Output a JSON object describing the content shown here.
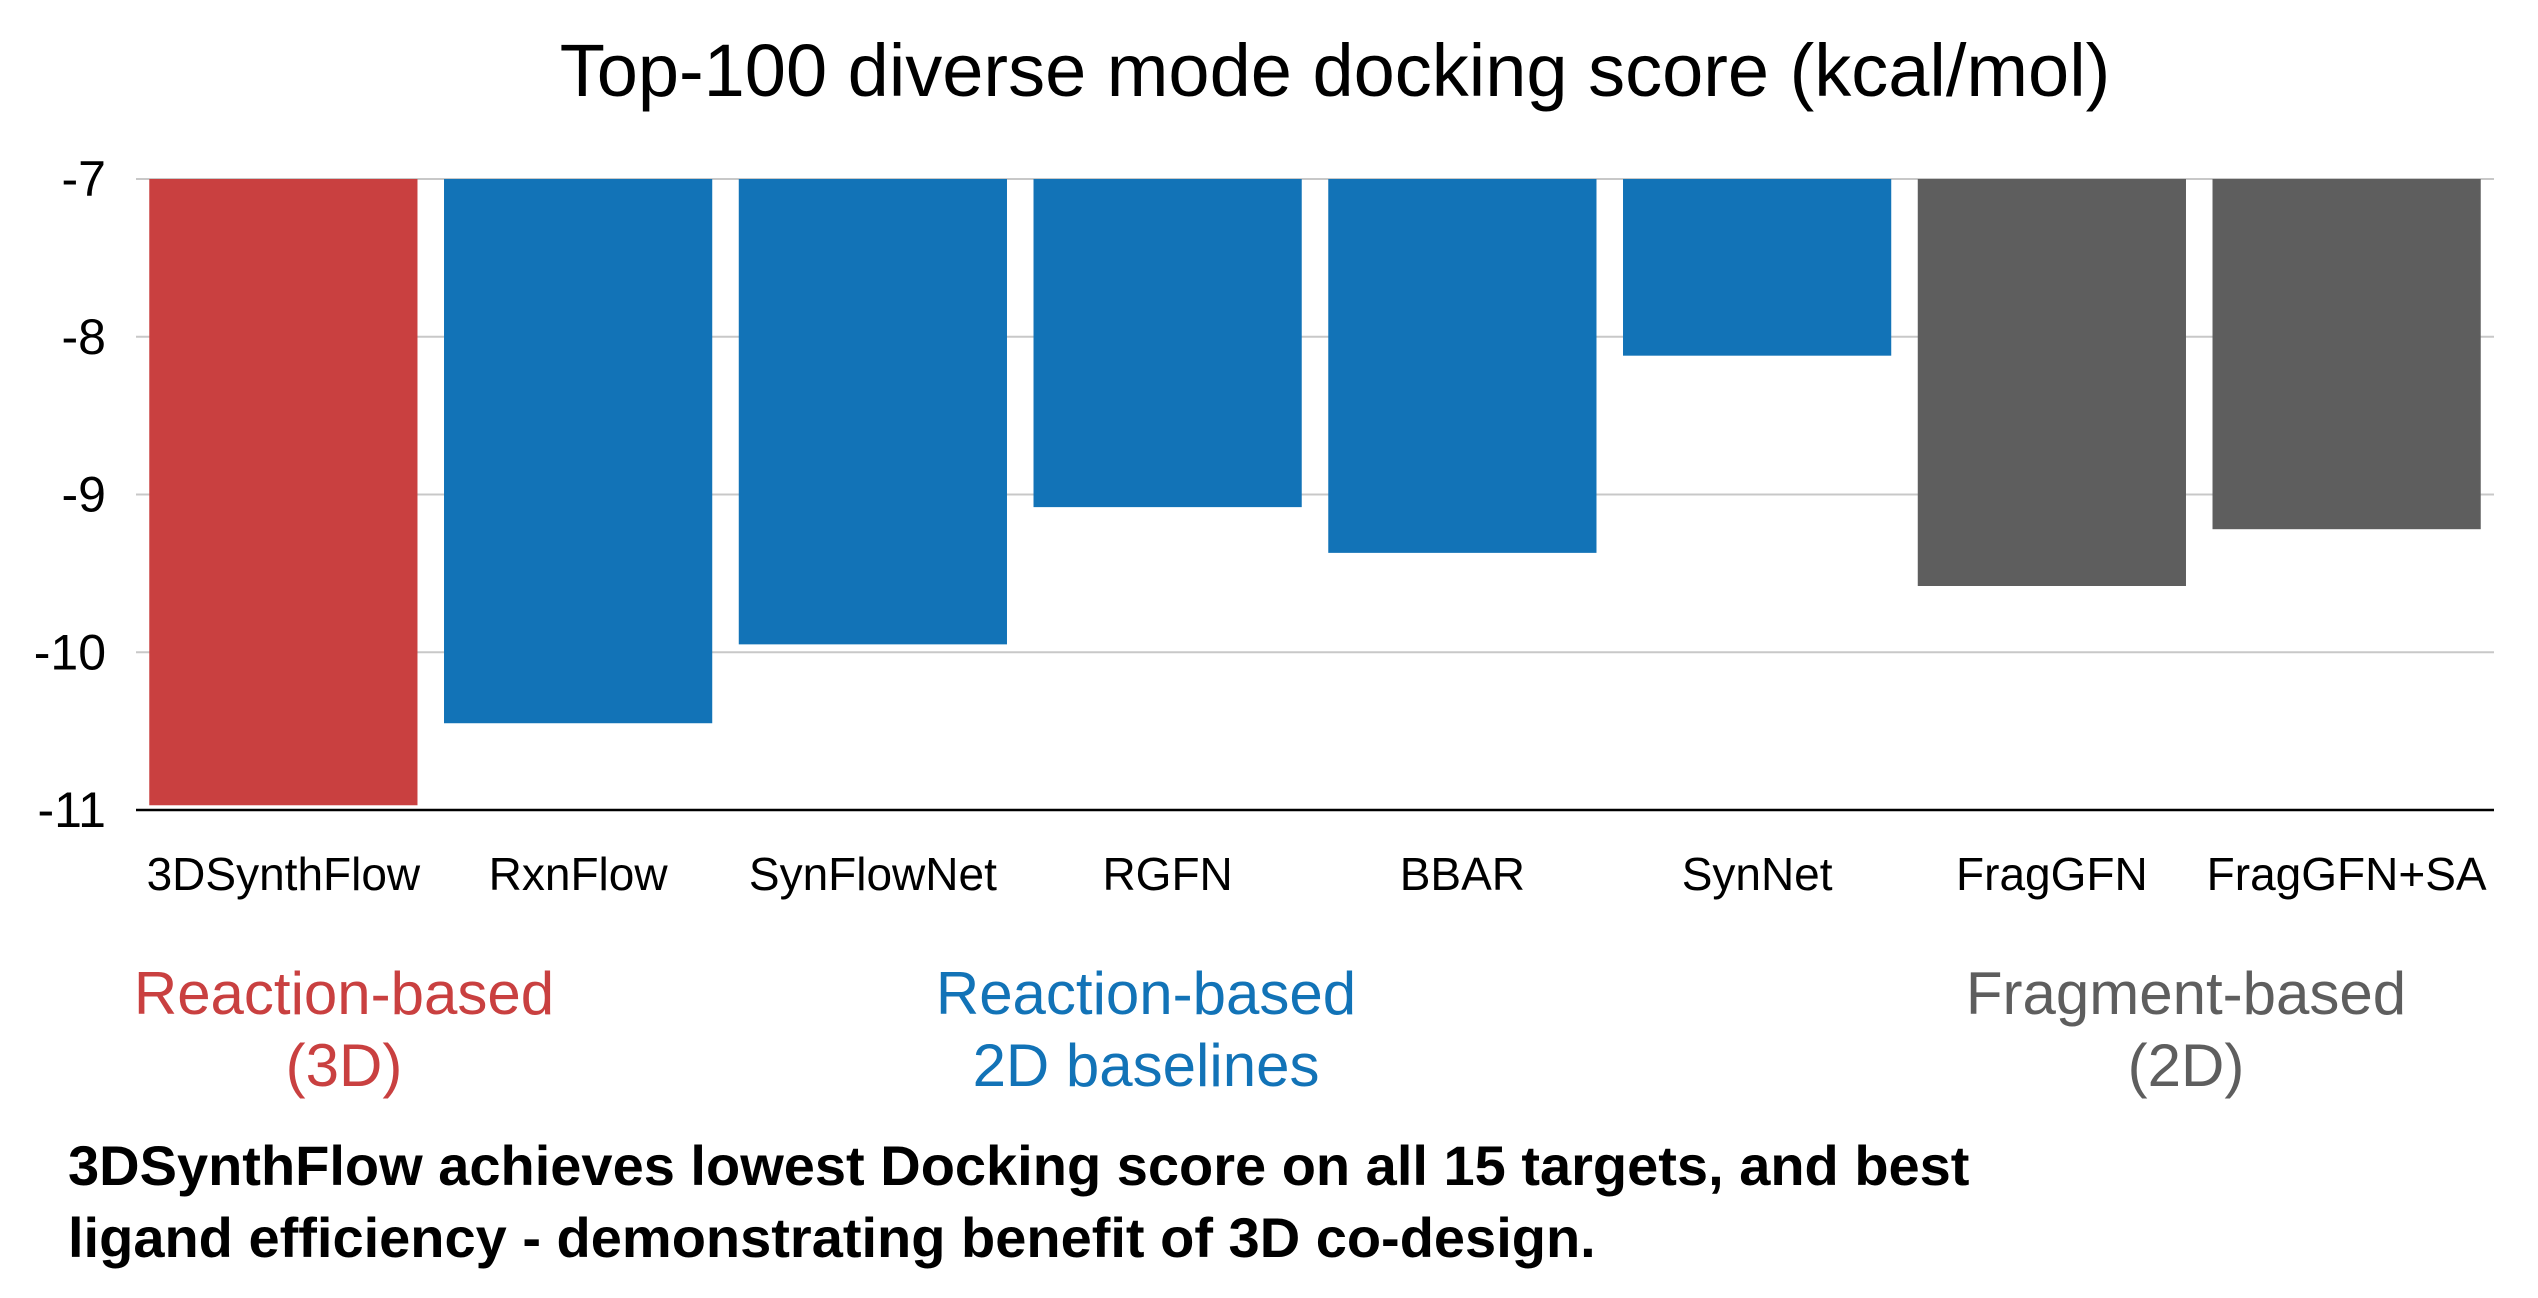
{
  "chart_data": {
    "type": "bar",
    "title": "Top-100 diverse mode docking score (kcal/mol)",
    "xlabel": "",
    "ylabel": "",
    "ylim": [
      -11,
      -7
    ],
    "baseline": -7,
    "yticks": [
      -7,
      -8,
      -9,
      -10,
      -11
    ],
    "ytick_labels": [
      "-7",
      "-8",
      "-9",
      "-10",
      "-11"
    ],
    "grid": true,
    "categories": [
      "3DSynthFlow",
      "RxnFlow",
      "SynFlowNet",
      "RGFN",
      "BBAR",
      "SynNet",
      "FragGFN",
      "FragGFN+SA"
    ],
    "values": [
      -10.97,
      -10.45,
      -9.95,
      -9.08,
      -9.37,
      -8.12,
      -9.58,
      -9.22
    ],
    "bar_colors": [
      "#c94040",
      "#1273b7",
      "#1273b7",
      "#1273b7",
      "#1273b7",
      "#1273b7",
      "#5e5e5e",
      "#5e5e5e"
    ]
  },
  "groups": [
    {
      "lines": [
        "Reaction-based",
        "(3D)"
      ],
      "color": "#c94040"
    },
    {
      "lines": [
        "Reaction-based",
        "2D baselines"
      ],
      "color": "#1273b7"
    },
    {
      "lines": [
        "Fragment-based",
        "(2D)"
      ],
      "color": "#5e5e5e"
    }
  ],
  "caption": {
    "line1": "3DSynthFlow achieves lowest Docking score on all 15 targets, and best",
    "line2": "ligand efficiency - demonstrating benefit of 3D co-design."
  }
}
